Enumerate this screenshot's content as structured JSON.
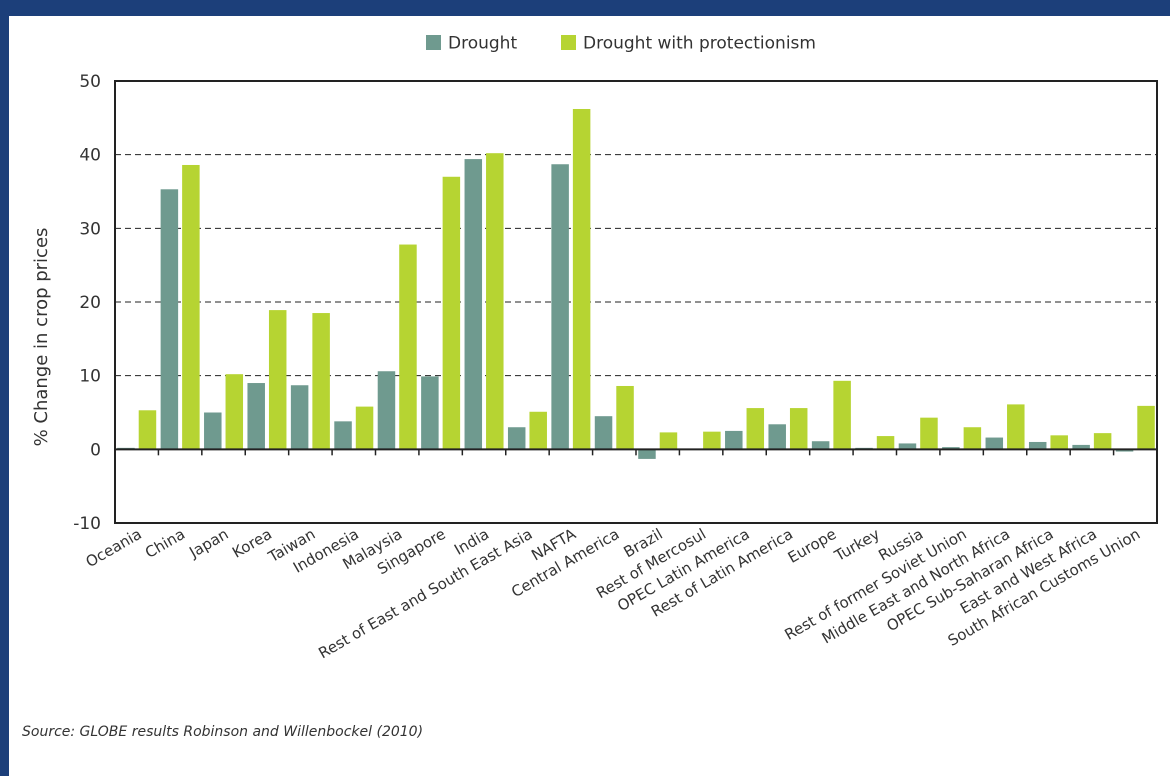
{
  "colors": {
    "frame": "#1c3f7a",
    "drought": "#6f9a8f",
    "protectionism": "#b6d432",
    "axis": "#222222",
    "grid": "#222222"
  },
  "source_note": "Source: GLOBE results Robinson and Willenbockel (2010)",
  "chart_data": {
    "type": "bar",
    "title": "",
    "xlabel": "",
    "ylabel": "% Change in crop prices",
    "ylim": [
      -10,
      50
    ],
    "yticks": [
      -10,
      0,
      10,
      20,
      30,
      40,
      50
    ],
    "grid": "horizontal dashed at 10, 20, 30, 40",
    "legend_position": "top-center",
    "categories": [
      "Oceania",
      "China",
      "Japan",
      "Korea",
      "Taiwan",
      "Indonesia",
      "Malaysia",
      "Singapore",
      "India",
      "Rest of East and South East Asia",
      "NAFTA",
      "Central America",
      "Brazil",
      "Rest of Mercosul",
      "OPEC Latin America",
      "Rest of Latin America",
      "Europe",
      "Turkey",
      "Russia",
      "Rest of former Soviet Union",
      "Middle East and North Africa",
      "OPEC Sub-Saharan Africa",
      "East and West Africa",
      "South African Customs Union"
    ],
    "series": [
      {
        "name": "Drought",
        "values": [
          0.2,
          35.3,
          5.0,
          9.0,
          8.7,
          3.8,
          10.6,
          9.9,
          39.4,
          3.0,
          38.7,
          4.5,
          -1.3,
          0.1,
          2.5,
          3.4,
          1.1,
          0.2,
          0.8,
          0.3,
          1.6,
          1.0,
          0.6,
          -0.3
        ]
      },
      {
        "name": "Drought with protectionism",
        "values": [
          5.3,
          38.6,
          10.2,
          18.9,
          18.5,
          5.8,
          27.8,
          37.0,
          40.2,
          5.1,
          46.2,
          8.6,
          2.3,
          2.4,
          5.6,
          5.6,
          9.3,
          1.8,
          4.3,
          3.0,
          6.1,
          1.9,
          2.2,
          5.9
        ]
      }
    ]
  }
}
